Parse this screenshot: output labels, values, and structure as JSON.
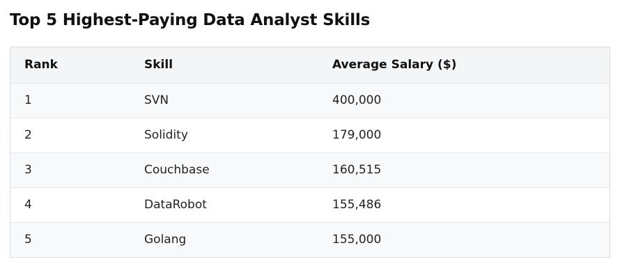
{
  "title": "Top 5 Highest-Paying Data Analyst Skills",
  "table": {
    "headers": {
      "rank": "Rank",
      "skill": "Skill",
      "salary": "Average Salary ($)"
    },
    "rows": [
      {
        "rank": "1",
        "skill": "SVN",
        "salary": "400,000"
      },
      {
        "rank": "2",
        "skill": "Solidity",
        "salary": "179,000"
      },
      {
        "rank": "3",
        "skill": "Couchbase",
        "salary": "160,515"
      },
      {
        "rank": "4",
        "skill": "DataRobot",
        "salary": "155,486"
      },
      {
        "rank": "5",
        "skill": "Golang",
        "salary": "155,000"
      }
    ]
  }
}
